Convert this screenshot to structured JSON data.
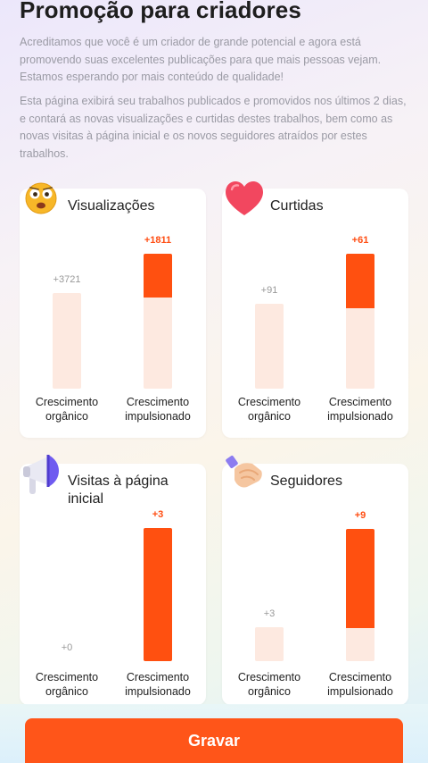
{
  "header": {
    "title": "Promoção para criadores",
    "paragraph1": "Acreditamos que você é um criador de grande potencial e agora está promovendo suas excelentes publicações para que mais pessoas vejam. Estamos esperando por mais conteúdo de qualidade!",
    "paragraph2": "Esta página exibirá seu trabalhos publicados e promovidos nos últimos 2 dias, e contará as novas visualizações e curtidas destes trabalhos, bem como as novas visitas à página inicial e os novos seguidores atraídos por estes trabalhos."
  },
  "cards": [
    {
      "title": "Visualizações",
      "icon": "surprised-face-emoji-icon",
      "organic": {
        "label": "+3721",
        "value": 3721,
        "caption": "Crescimento orgânico"
      },
      "boosted": {
        "label": "+1811",
        "value": 1811,
        "caption": "Crescimento impulsionado"
      }
    },
    {
      "title": "Curtidas",
      "icon": "heart-icon",
      "organic": {
        "label": "+91",
        "value": 91,
        "caption": "Crescimento orgânico"
      },
      "boosted": {
        "label": "+61",
        "value": 61,
        "caption": "Crescimento impulsionado"
      }
    },
    {
      "title": "Visitas à página inicial",
      "icon": "megaphone-icon",
      "organic": {
        "label": "+0",
        "value": 0,
        "caption": "Crescimento orgânico"
      },
      "boosted": {
        "label": "+3",
        "value": 3,
        "caption": "Crescimento impulsionado"
      }
    },
    {
      "title": "Seguidores",
      "icon": "handshake-icon",
      "organic": {
        "label": "+3",
        "value": 3,
        "caption": "Crescimento orgânico"
      },
      "boosted": {
        "label": "+9",
        "value": 9,
        "caption": "Crescimento impulsionado"
      }
    }
  ],
  "colors": {
    "accent": "#ff5010",
    "organic_bar": "#fde9e0",
    "button": "#ff5519"
  },
  "footer": {
    "button_label": "Gravar"
  }
}
